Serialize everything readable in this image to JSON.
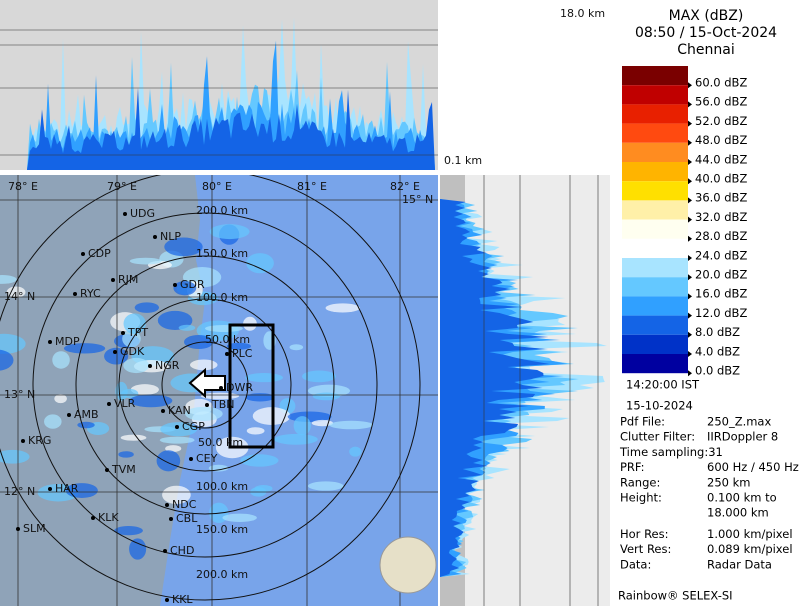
{
  "top_panel": {
    "height_label": "18.0 km"
  },
  "side_panel": {
    "height_label": "0.1 km"
  },
  "header": {
    "title": "MAX (dBZ)",
    "datetime": "08:50 / 15-Oct-2024",
    "station": "Chennai"
  },
  "legend": [
    {
      "label": "60.0 dBZ",
      "color": "#7a0000"
    },
    {
      "label": "56.0 dBZ",
      "color": "#c00000"
    },
    {
      "label": "52.0 dBZ",
      "color": "#e82000"
    },
    {
      "label": "48.0 dBZ",
      "color": "#ff4a10"
    },
    {
      "label": "44.0 dBZ",
      "color": "#ff8c20"
    },
    {
      "label": "40.0 dBZ",
      "color": "#ffb400"
    },
    {
      "label": "36.0 dBZ",
      "color": "#ffe000"
    },
    {
      "label": "32.0 dBZ",
      "color": "#fff0a8"
    },
    {
      "label": "28.0 dBZ",
      "color": "#fffff0"
    },
    {
      "label": "24.0 dBZ",
      "color": "#ffffff"
    },
    {
      "label": "20.0 dBZ",
      "color": "#a8e4ff"
    },
    {
      "label": "16.0 dBZ",
      "color": "#64c8ff"
    },
    {
      "label": "12.0 dBZ",
      "color": "#30a0ff"
    },
    {
      "label": "8.0 dBZ",
      "color": "#1464e6"
    },
    {
      "label": "4.0 dBZ",
      "color": "#0032c8"
    },
    {
      "label": "0.0 dBZ",
      "color": "#0000a0"
    }
  ],
  "time": "14:20:00 IST",
  "date": "15-10-2024",
  "info": [
    [
      "Pdf File:",
      "250_Z.max"
    ],
    [
      "Clutter Filter:",
      "IIRDoppler 8"
    ],
    [
      "Time sampling:31",
      null
    ],
    [
      "PRF:",
      "600 Hz / 450 Hz"
    ],
    [
      "Range:",
      "250 km"
    ],
    [
      "Height:",
      "0.100 km to"
    ],
    [
      null,
      "18.000 km"
    ],
    [
      "Hor Res:",
      "1.000 km/pixel"
    ],
    [
      "Vert Res:",
      "0.089 km/pixel"
    ],
    [
      "Data:",
      "Radar Data"
    ]
  ],
  "footer": "Rainbow® SELEX-SI",
  "map": {
    "lon_labels": [
      "78° E",
      "79° E",
      "80° E",
      "81° E",
      "82° E"
    ],
    "lat_labels": [
      "15° N",
      "14° N",
      "13° N",
      "12° N"
    ],
    "ring_labels": [
      "200.0 km",
      "150.0 km",
      "100.0 km",
      "50.0 km",
      "50.0 km",
      "100.0 km",
      "150.0 km",
      "200.0 km"
    ],
    "cities": [
      "UDG",
      "NLP",
      "CDP",
      "RJM",
      "RYC",
      "GDR",
      "MDP",
      "TPT",
      "GDK",
      "NGR",
      "PLC",
      "DWR",
      "VLR",
      "KAN",
      "TBN",
      "AMB",
      "CGP",
      "KRG",
      "CEY",
      "TVM",
      "HAR",
      "NDC",
      "KLK",
      "CBL",
      "SLM",
      "CHD",
      "KKL"
    ]
  }
}
